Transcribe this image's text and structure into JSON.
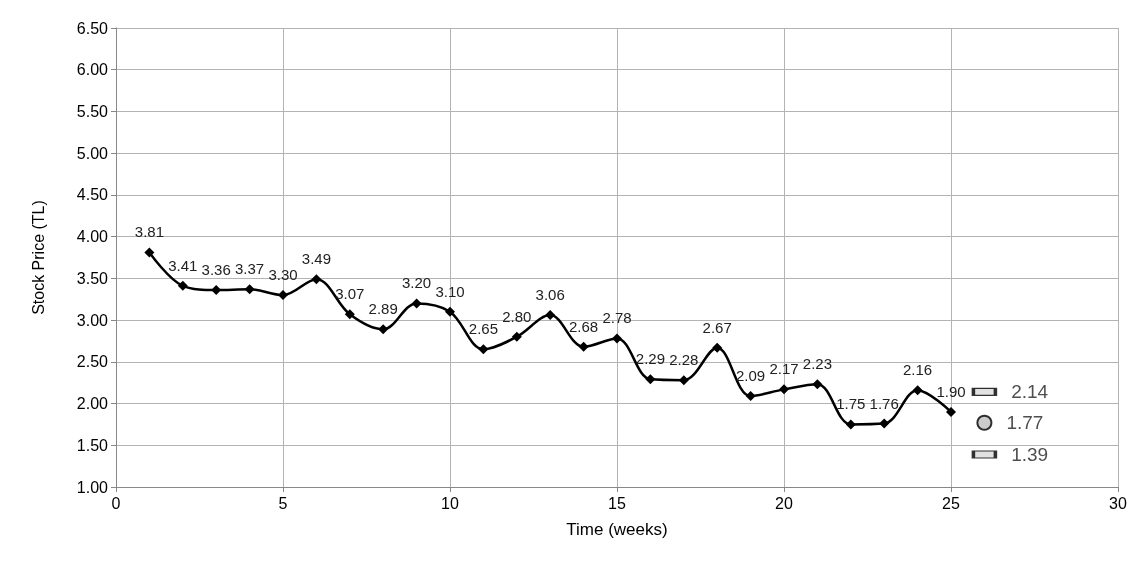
{
  "chart_data": {
    "type": "line",
    "xlabel": "Time (weeks)",
    "ylabel": "Stock Price (TL)",
    "xlim": [
      0,
      30
    ],
    "xticks": [
      0,
      5,
      10,
      15,
      20,
      25,
      30
    ],
    "ylim": [
      1,
      6.5
    ],
    "yticks": [
      {
        "value": 1,
        "label": "1.00"
      },
      {
        "value": 1.5,
        "label": "1.50"
      },
      {
        "value": 2,
        "label": "2.00"
      },
      {
        "value": 2.5,
        "label": "2.50"
      },
      {
        "value": 3,
        "label": "3.00"
      },
      {
        "value": 3.5,
        "label": "3.50"
      },
      {
        "value": 4,
        "label": "4.00"
      },
      {
        "value": 4.5,
        "label": "4.50"
      },
      {
        "value": 5,
        "label": "5.00"
      },
      {
        "value": 5.5,
        "label": "5.50"
      },
      {
        "value": 6,
        "label": "6.00"
      },
      {
        "value": 6.5,
        "label": "6.50"
      }
    ],
    "grid": true,
    "series": [
      {
        "color": "#000000",
        "marker": "diamond",
        "x": [
          1,
          2,
          3,
          4,
          5,
          6,
          7,
          8,
          9,
          10,
          11,
          12,
          13,
          14,
          15,
          16,
          17,
          18,
          19,
          20,
          21,
          22,
          23,
          24,
          25
        ],
        "values": [
          3.81,
          3.41,
          3.36,
          3.37,
          3.3,
          3.49,
          3.07,
          2.89,
          3.2,
          3.1,
          2.65,
          2.8,
          3.06,
          2.68,
          2.78,
          2.29,
          2.28,
          2.67,
          2.09,
          2.17,
          2.23,
          1.75,
          1.76,
          2.16,
          1.9
        ],
        "value_labels": [
          "3.81",
          "3.41",
          "3.36",
          "3.37",
          "3.30",
          "3.49",
          "3.07",
          "2.89",
          "3.20",
          "3.10",
          "2.65",
          "2.80",
          "3.06",
          "2.68",
          "2.78",
          "2.29",
          "2.28",
          "2.67",
          "2.09",
          "2.17",
          "2.23",
          "1.75",
          "1.76",
          "2.16",
          "1.90"
        ]
      },
      {
        "type": "scatter",
        "color": "#d9d9d9",
        "marker": "square",
        "x": [
          26
        ],
        "values": [
          2.14
        ],
        "value_labels": [
          "2.14"
        ]
      },
      {
        "type": "scatter",
        "color": "#bfbfbf",
        "marker": "circle",
        "x": [
          26
        ],
        "values": [
          1.77
        ],
        "value_labels": [
          "1.77"
        ]
      },
      {
        "type": "scatter",
        "color": "#d9d9d9",
        "marker": "square",
        "x": [
          26
        ],
        "values": [
          1.39
        ],
        "value_labels": [
          "1.39"
        ]
      }
    ]
  }
}
